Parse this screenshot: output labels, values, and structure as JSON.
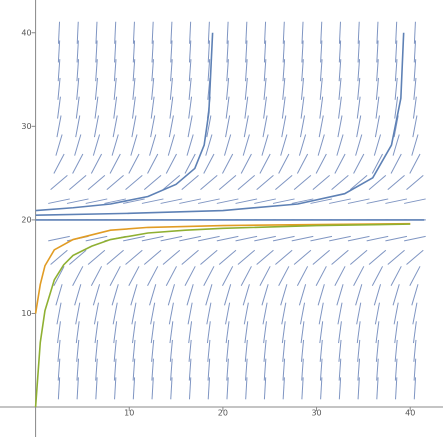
{
  "chart_data": {
    "type": "slope-field",
    "xlim": [
      -3.8,
      43.5
    ],
    "ylim": [
      -3.2,
      43.5
    ],
    "xticks": [
      10,
      20,
      30,
      40
    ],
    "yticks": [
      10,
      20,
      30,
      40
    ],
    "field": {
      "color": "#7f95c2",
      "x": [
        2.5,
        4.5,
        6.5,
        8.5,
        10.5,
        12.5,
        14.5,
        16.5,
        18.5,
        20.5,
        22.5,
        24.5,
        26.5,
        28.5,
        30.5,
        32.5,
        34.5,
        36.5,
        38.5,
        40.5
      ],
      "y": [
        2,
        4,
        6,
        8,
        10,
        12,
        14,
        16,
        18,
        20,
        22,
        24,
        26,
        28,
        30,
        32,
        34,
        36,
        38,
        40
      ],
      "slopes": [
        17.2,
        13.6,
        10.4,
        7.6,
        5.3,
        3.4,
        1.9,
        0.85,
        0.21,
        0,
        0.21,
        0.85,
        1.9,
        3.4,
        5.3,
        7.6,
        10.4,
        13.6,
        17.2,
        21.2
      ]
    },
    "series": [
      {
        "color": "#5e81b5",
        "x": [
          0,
          4,
          8,
          12,
          15,
          17,
          18,
          18.5,
          18.9
        ],
        "values": [
          21,
          21.3,
          21.7,
          22.5,
          23.8,
          25.5,
          28,
          31.5,
          40
        ]
      },
      {
        "color": "#5e81b5",
        "x": [
          0,
          10,
          20,
          28,
          33,
          36,
          38,
          39,
          39.3
        ],
        "values": [
          20.5,
          20.7,
          21,
          21.7,
          22.8,
          24.5,
          28,
          33,
          40
        ]
      },
      {
        "color": "#5e81b5",
        "x": [
          0,
          41.5
        ],
        "values": [
          20,
          20
        ]
      },
      {
        "color": "#e19c24",
        "x": [
          0,
          0.5,
          1,
          2,
          4,
          8,
          12,
          20,
          30,
          40
        ],
        "values": [
          10,
          13.1,
          15.1,
          16.8,
          17.9,
          18.9,
          19.2,
          19.4,
          19.5,
          19.6
        ]
      },
      {
        "color": "#8fb032",
        "x": [
          0,
          0.5,
          1,
          2,
          3,
          4,
          6,
          8,
          12,
          16,
          20,
          30,
          40
        ],
        "values": [
          0,
          6.9,
          10.3,
          13.6,
          15.2,
          16.2,
          17.2,
          17.9,
          18.6,
          18.9,
          19.1,
          19.4,
          19.55
        ]
      }
    ]
  }
}
